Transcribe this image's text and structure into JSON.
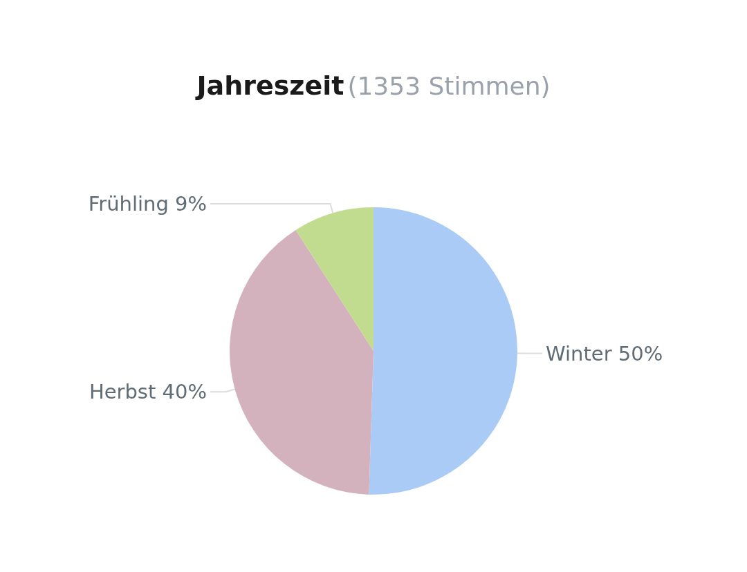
{
  "chart_data": {
    "type": "pie",
    "title": "Jahreszeit",
    "subtitle": "(1353 Stimmen)",
    "categories": [
      "Winter",
      "Herbst",
      "Frühling"
    ],
    "values": [
      50,
      40,
      9
    ],
    "value_labels": [
      "50%",
      "40%",
      "9%"
    ],
    "colors": [
      "#abcbf7",
      "#d4b2bd",
      "#c2dc8f"
    ]
  }
}
